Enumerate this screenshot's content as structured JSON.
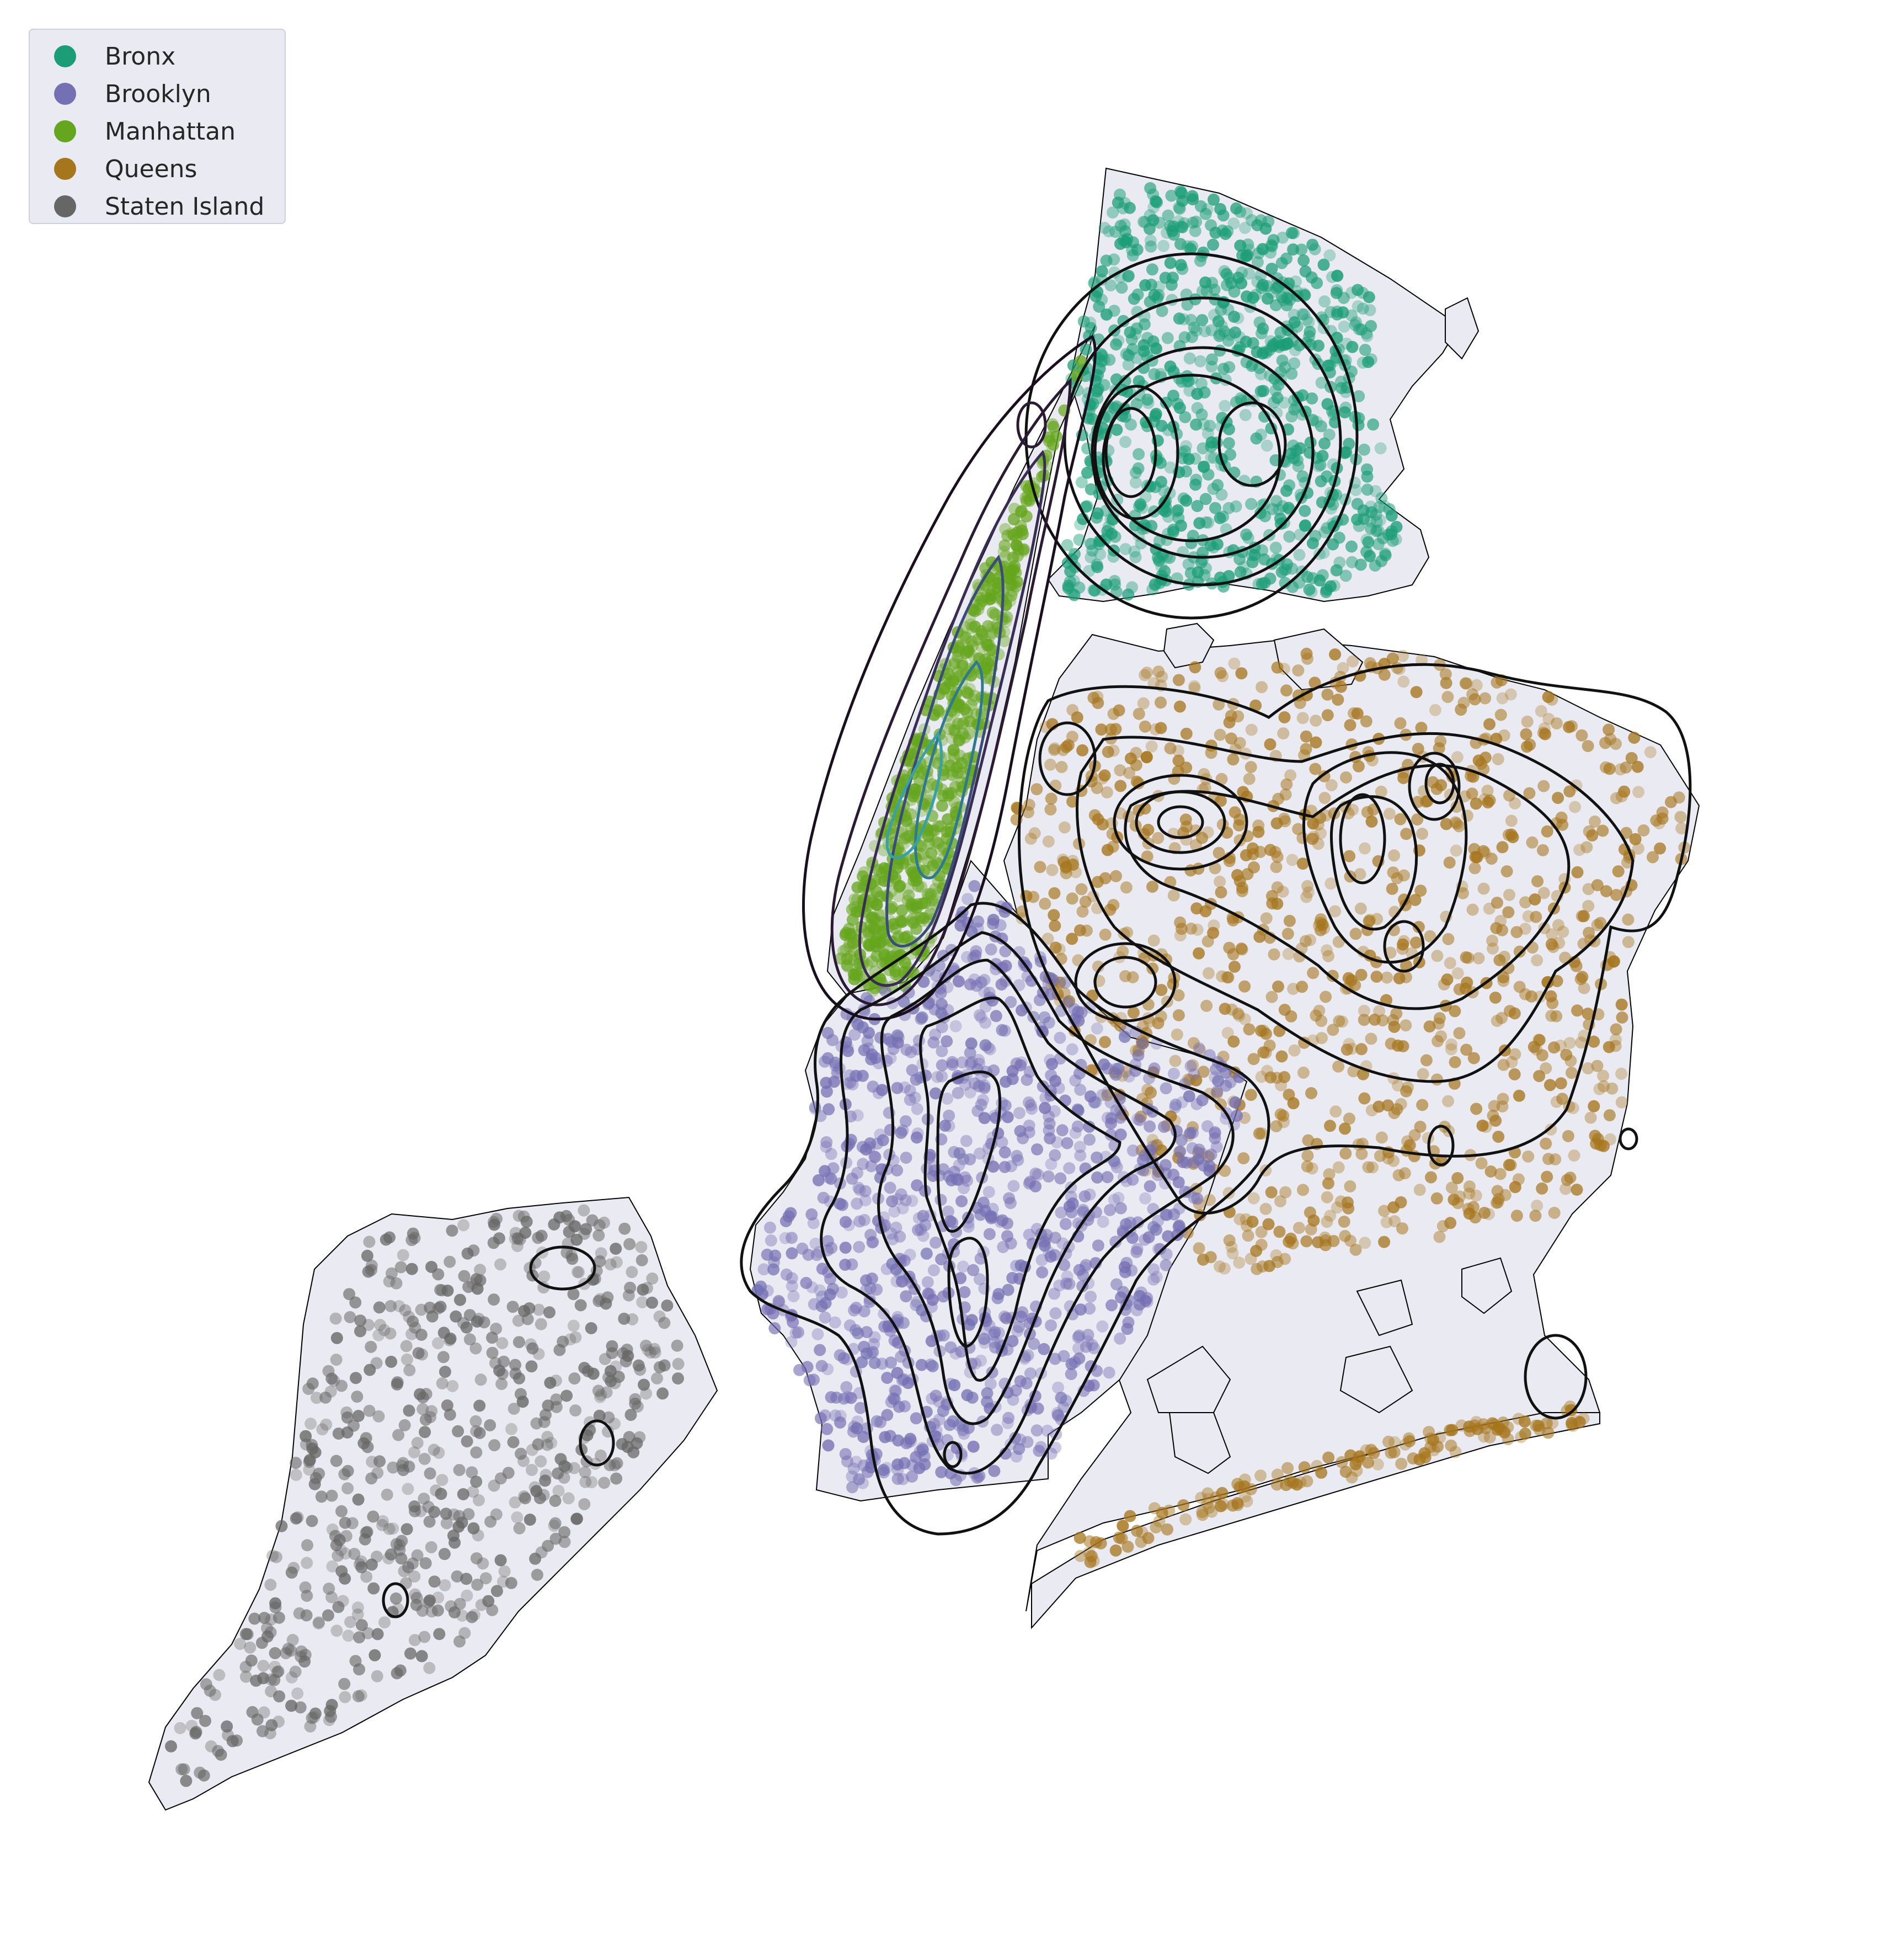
{
  "legend": {
    "items": [
      {
        "label": "Bronx",
        "color": "#1b9e77"
      },
      {
        "label": "Brooklyn",
        "color": "#7570b3"
      },
      {
        "label": "Manhattan",
        "color": "#66a61e"
      },
      {
        "label": "Queens",
        "color": "#a6761d"
      },
      {
        "label": "Staten Island",
        "color": "#666666"
      }
    ]
  },
  "map": {
    "land_color": "#eaeaf2",
    "outline_color": "#000000",
    "contour_color": "#000000"
  }
}
